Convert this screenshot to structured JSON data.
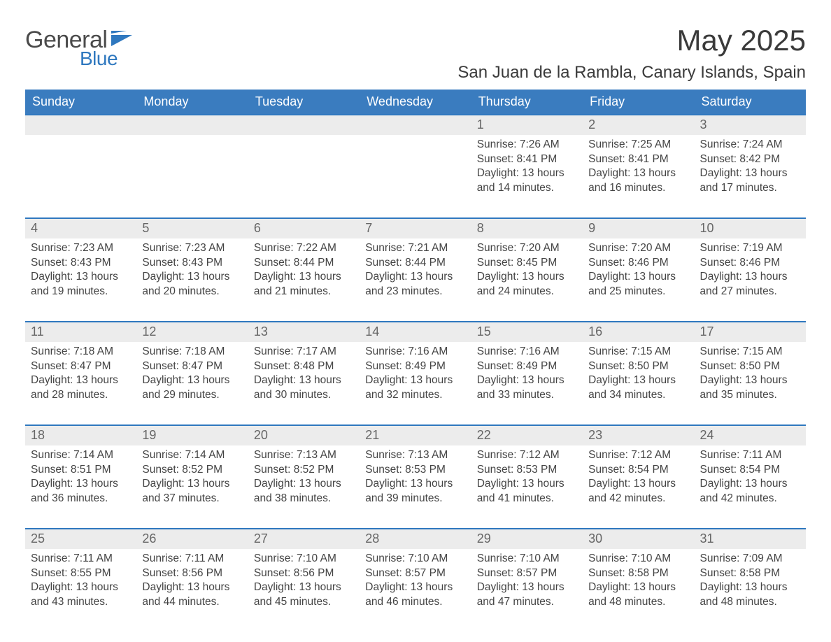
{
  "brand": {
    "word1": "General",
    "word2": "Blue",
    "flag_color": "#2f78bf"
  },
  "colors": {
    "header_bg": "#3a7cbf",
    "header_text": "#ffffff",
    "row_border": "#2f78bf",
    "daynum_bg": "#ececec",
    "daynum_text": "#666666",
    "body_text": "#444444",
    "page_bg": "#ffffff"
  },
  "title": "May 2025",
  "location": "San Juan de la Rambla, Canary Islands, Spain",
  "weekdays": [
    "Sunday",
    "Monday",
    "Tuesday",
    "Wednesday",
    "Thursday",
    "Friday",
    "Saturday"
  ],
  "labels": {
    "sunrise": "Sunrise:",
    "sunset": "Sunset:",
    "daylight": "Daylight:"
  },
  "weeks": [
    [
      null,
      null,
      null,
      null,
      {
        "n": "1",
        "sunrise": "7:26 AM",
        "sunset": "8:41 PM",
        "daylight": "13 hours and 14 minutes."
      },
      {
        "n": "2",
        "sunrise": "7:25 AM",
        "sunset": "8:41 PM",
        "daylight": "13 hours and 16 minutes."
      },
      {
        "n": "3",
        "sunrise": "7:24 AM",
        "sunset": "8:42 PM",
        "daylight": "13 hours and 17 minutes."
      }
    ],
    [
      {
        "n": "4",
        "sunrise": "7:23 AM",
        "sunset": "8:43 PM",
        "daylight": "13 hours and 19 minutes."
      },
      {
        "n": "5",
        "sunrise": "7:23 AM",
        "sunset": "8:43 PM",
        "daylight": "13 hours and 20 minutes."
      },
      {
        "n": "6",
        "sunrise": "7:22 AM",
        "sunset": "8:44 PM",
        "daylight": "13 hours and 21 minutes."
      },
      {
        "n": "7",
        "sunrise": "7:21 AM",
        "sunset": "8:44 PM",
        "daylight": "13 hours and 23 minutes."
      },
      {
        "n": "8",
        "sunrise": "7:20 AM",
        "sunset": "8:45 PM",
        "daylight": "13 hours and 24 minutes."
      },
      {
        "n": "9",
        "sunrise": "7:20 AM",
        "sunset": "8:46 PM",
        "daylight": "13 hours and 25 minutes."
      },
      {
        "n": "10",
        "sunrise": "7:19 AM",
        "sunset": "8:46 PM",
        "daylight": "13 hours and 27 minutes."
      }
    ],
    [
      {
        "n": "11",
        "sunrise": "7:18 AM",
        "sunset": "8:47 PM",
        "daylight": "13 hours and 28 minutes."
      },
      {
        "n": "12",
        "sunrise": "7:18 AM",
        "sunset": "8:47 PM",
        "daylight": "13 hours and 29 minutes."
      },
      {
        "n": "13",
        "sunrise": "7:17 AM",
        "sunset": "8:48 PM",
        "daylight": "13 hours and 30 minutes."
      },
      {
        "n": "14",
        "sunrise": "7:16 AM",
        "sunset": "8:49 PM",
        "daylight": "13 hours and 32 minutes."
      },
      {
        "n": "15",
        "sunrise": "7:16 AM",
        "sunset": "8:49 PM",
        "daylight": "13 hours and 33 minutes."
      },
      {
        "n": "16",
        "sunrise": "7:15 AM",
        "sunset": "8:50 PM",
        "daylight": "13 hours and 34 minutes."
      },
      {
        "n": "17",
        "sunrise": "7:15 AM",
        "sunset": "8:50 PM",
        "daylight": "13 hours and 35 minutes."
      }
    ],
    [
      {
        "n": "18",
        "sunrise": "7:14 AM",
        "sunset": "8:51 PM",
        "daylight": "13 hours and 36 minutes."
      },
      {
        "n": "19",
        "sunrise": "7:14 AM",
        "sunset": "8:52 PM",
        "daylight": "13 hours and 37 minutes."
      },
      {
        "n": "20",
        "sunrise": "7:13 AM",
        "sunset": "8:52 PM",
        "daylight": "13 hours and 38 minutes."
      },
      {
        "n": "21",
        "sunrise": "7:13 AM",
        "sunset": "8:53 PM",
        "daylight": "13 hours and 39 minutes."
      },
      {
        "n": "22",
        "sunrise": "7:12 AM",
        "sunset": "8:53 PM",
        "daylight": "13 hours and 41 minutes."
      },
      {
        "n": "23",
        "sunrise": "7:12 AM",
        "sunset": "8:54 PM",
        "daylight": "13 hours and 42 minutes."
      },
      {
        "n": "24",
        "sunrise": "7:11 AM",
        "sunset": "8:54 PM",
        "daylight": "13 hours and 42 minutes."
      }
    ],
    [
      {
        "n": "25",
        "sunrise": "7:11 AM",
        "sunset": "8:55 PM",
        "daylight": "13 hours and 43 minutes."
      },
      {
        "n": "26",
        "sunrise": "7:11 AM",
        "sunset": "8:56 PM",
        "daylight": "13 hours and 44 minutes."
      },
      {
        "n": "27",
        "sunrise": "7:10 AM",
        "sunset": "8:56 PM",
        "daylight": "13 hours and 45 minutes."
      },
      {
        "n": "28",
        "sunrise": "7:10 AM",
        "sunset": "8:57 PM",
        "daylight": "13 hours and 46 minutes."
      },
      {
        "n": "29",
        "sunrise": "7:10 AM",
        "sunset": "8:57 PM",
        "daylight": "13 hours and 47 minutes."
      },
      {
        "n": "30",
        "sunrise": "7:10 AM",
        "sunset": "8:58 PM",
        "daylight": "13 hours and 48 minutes."
      },
      {
        "n": "31",
        "sunrise": "7:09 AM",
        "sunset": "8:58 PM",
        "daylight": "13 hours and 48 minutes."
      }
    ]
  ]
}
